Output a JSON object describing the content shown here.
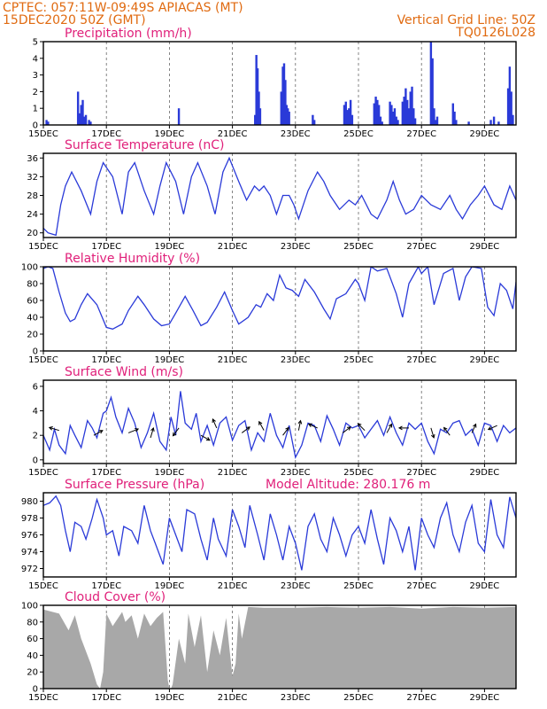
{
  "header": {
    "line1": "CPTEC:   057:11W-09:49S   APIACAS (MT)",
    "line2": "15DEC2020 50Z (GMT)",
    "right1": "Vertical Grid Line: 50Z",
    "right2": "TQ0126L028"
  },
  "colors": {
    "header": "#e06a10",
    "title": "#e0207a",
    "line": "#2a3ad8",
    "bar": "#2a3ad8",
    "cloud": "#a8a8a8"
  },
  "x_axis": {
    "range": [
      0,
      15
    ],
    "ticks": [
      {
        "x": 0,
        "label": "15DEC"
      },
      {
        "x": 2,
        "label": "17DEC"
      },
      {
        "x": 4,
        "label": "19DEC"
      },
      {
        "x": 6,
        "label": "21DEC"
      },
      {
        "x": 8,
        "label": "23DEC"
      },
      {
        "x": 10,
        "label": "25DEC"
      },
      {
        "x": 12,
        "label": "27DEC"
      },
      {
        "x": 14,
        "label": "29DEC"
      }
    ]
  },
  "chart_data": [
    {
      "type": "bar",
      "title": "Precipitation (mm/h)",
      "ylim": [
        0,
        5
      ],
      "yticks": [
        0,
        1,
        2,
        3,
        4,
        5
      ],
      "x": [
        0.1,
        0.15,
        1.1,
        1.15,
        1.2,
        1.25,
        1.3,
        1.35,
        1.45,
        1.5,
        4.3,
        6.72,
        6.76,
        6.8,
        6.84,
        6.88,
        7.55,
        7.6,
        7.64,
        7.68,
        7.72,
        7.76,
        7.8,
        8.55,
        8.6,
        9.55,
        9.6,
        9.65,
        9.7,
        9.75,
        9.8,
        10.5,
        10.55,
        10.6,
        10.65,
        10.7,
        10.75,
        11.0,
        11.05,
        11.1,
        11.15,
        11.2,
        11.25,
        11.4,
        11.45,
        11.5,
        11.55,
        11.6,
        11.65,
        11.7,
        11.75,
        11.8,
        12.3,
        12.35,
        12.4,
        12.45,
        12.5,
        13.0,
        13.05,
        13.1,
        13.5,
        14.2,
        14.3,
        14.45,
        14.75,
        14.8,
        14.85,
        14.9
      ],
      "values": [
        0.3,
        0.2,
        2.0,
        0.7,
        1.2,
        1.5,
        0.5,
        0.6,
        0.3,
        0.2,
        1.0,
        0.6,
        4.2,
        3.4,
        2.0,
        1.0,
        2.0,
        3.5,
        3.7,
        2.7,
        1.2,
        1.0,
        0.8,
        0.6,
        0.3,
        1.2,
        1.4,
        0.9,
        1.0,
        1.5,
        0.6,
        1.3,
        1.7,
        1.5,
        1.2,
        0.5,
        0.2,
        1.4,
        1.2,
        0.8,
        1.0,
        0.5,
        0.3,
        1.4,
        1.7,
        2.2,
        1.5,
        1.0,
        2.0,
        2.3,
        1.0,
        0.4,
        5.0,
        4.0,
        1.0,
        0.3,
        0.5,
        1.3,
        0.8,
        0.3,
        0.2,
        0.3,
        0.5,
        0.2,
        2.2,
        3.5,
        2.0,
        0.6
      ]
    },
    {
      "type": "line",
      "title": "Surface Temperature (nC)",
      "ylim": [
        19,
        37
      ],
      "yticks": [
        20,
        24,
        28,
        32,
        36
      ],
      "x": [
        0,
        0.15,
        0.4,
        0.55,
        0.7,
        0.9,
        1.2,
        1.5,
        1.7,
        1.9,
        2.2,
        2.5,
        2.7,
        2.9,
        3.2,
        3.5,
        3.7,
        3.9,
        4.2,
        4.45,
        4.7,
        4.9,
        5.2,
        5.45,
        5.7,
        5.9,
        6.2,
        6.45,
        6.7,
        6.85,
        7.0,
        7.2,
        7.4,
        7.6,
        7.8,
        7.95,
        8.1,
        8.4,
        8.7,
        8.9,
        9.1,
        9.4,
        9.7,
        9.9,
        10.1,
        10.4,
        10.6,
        10.9,
        11.1,
        11.3,
        11.5,
        11.75,
        12.0,
        12.3,
        12.6,
        12.9,
        13.1,
        13.3,
        13.55,
        13.8,
        14.0,
        14.3,
        14.55,
        14.8,
        15.0
      ],
      "values": [
        21,
        20,
        19.5,
        26,
        30,
        33,
        29,
        24,
        31,
        35,
        32,
        24,
        33,
        35,
        29,
        24,
        30,
        35,
        31,
        24,
        32,
        35,
        30,
        24,
        33,
        36,
        31,
        27,
        30,
        29,
        30,
        28,
        24,
        28,
        28,
        26,
        23,
        29,
        33,
        31,
        28,
        25,
        27,
        26,
        28,
        24,
        23,
        27,
        31,
        27,
        24,
        25,
        28,
        26,
        25,
        28,
        25,
        23,
        26,
        28,
        30,
        26,
        25,
        30,
        27
      ]
    },
    {
      "type": "line",
      "title": "Relative Humidity (%)",
      "ylim": [
        0,
        100
      ],
      "yticks": [
        0,
        20,
        40,
        60,
        80,
        100
      ],
      "x": [
        0,
        0.15,
        0.3,
        0.5,
        0.7,
        0.85,
        1.0,
        1.2,
        1.4,
        1.7,
        2.0,
        2.2,
        2.5,
        2.7,
        3.0,
        3.2,
        3.5,
        3.75,
        4.0,
        4.2,
        4.5,
        4.75,
        5.0,
        5.2,
        5.5,
        5.75,
        6.0,
        6.2,
        6.5,
        6.75,
        6.9,
        7.1,
        7.3,
        7.5,
        7.7,
        7.9,
        8.1,
        8.3,
        8.6,
        8.9,
        9.1,
        9.3,
        9.6,
        9.9,
        10.0,
        10.2,
        10.4,
        10.6,
        10.9,
        11.2,
        11.4,
        11.6,
        11.9,
        12.0,
        12.2,
        12.4,
        12.7,
        13.0,
        13.2,
        13.4,
        13.6,
        13.9,
        14.1,
        14.3,
        14.5,
        14.7,
        14.9,
        15.0
      ],
      "values": [
        98,
        100,
        98,
        70,
        45,
        35,
        38,
        55,
        68,
        55,
        28,
        26,
        32,
        48,
        65,
        55,
        38,
        30,
        32,
        45,
        65,
        48,
        30,
        34,
        52,
        70,
        48,
        32,
        40,
        55,
        52,
        68,
        60,
        90,
        75,
        72,
        65,
        85,
        70,
        50,
        38,
        62,
        68,
        85,
        80,
        60,
        100,
        95,
        98,
        68,
        40,
        80,
        100,
        92,
        100,
        55,
        92,
        98,
        60,
        88,
        100,
        98,
        52,
        42,
        80,
        72,
        50,
        82
      ]
    },
    {
      "type": "line",
      "title": "Surface Wind (m/s)",
      "ylim": [
        -0.3,
        6.5
      ],
      "yticks": [
        0,
        2,
        4,
        6
      ],
      "x": [
        0,
        0.2,
        0.35,
        0.5,
        0.7,
        0.85,
        1.0,
        1.2,
        1.4,
        1.55,
        1.7,
        1.9,
        2.0,
        2.15,
        2.3,
        2.5,
        2.7,
        2.9,
        3.1,
        3.3,
        3.5,
        3.7,
        3.9,
        4.05,
        4.2,
        4.35,
        4.5,
        4.7,
        4.85,
        5.0,
        5.2,
        5.4,
        5.6,
        5.8,
        6.0,
        6.2,
        6.4,
        6.6,
        6.8,
        7.0,
        7.2,
        7.4,
        7.6,
        7.8,
        8.0,
        8.2,
        8.4,
        8.6,
        8.8,
        9.0,
        9.2,
        9.4,
        9.6,
        9.8,
        10.0,
        10.2,
        10.4,
        10.6,
        10.8,
        11.0,
        11.2,
        11.4,
        11.6,
        11.8,
        12.0,
        12.2,
        12.4,
        12.6,
        12.8,
        13.0,
        13.2,
        13.4,
        13.6,
        13.8,
        14.0,
        14.2,
        14.4,
        14.6,
        14.8,
        15.0
      ],
      "values": [
        2.0,
        0.8,
        2.5,
        1.2,
        0.5,
        2.8,
        2.0,
        1.0,
        3.2,
        2.6,
        1.8,
        3.8,
        4.0,
        5.1,
        3.5,
        2.2,
        4.2,
        3.0,
        1.0,
        2.2,
        3.8,
        1.5,
        0.8,
        3.5,
        2.0,
        5.6,
        3.0,
        2.5,
        3.8,
        1.5,
        2.8,
        1.2,
        3.0,
        3.5,
        1.6,
        2.8,
        3.2,
        0.8,
        2.2,
        1.5,
        3.8,
        2.0,
        1.0,
        2.8,
        0.2,
        1.2,
        3.0,
        2.8,
        1.5,
        3.6,
        2.5,
        1.2,
        3.0,
        2.6,
        2.8,
        1.8,
        2.5,
        3.2,
        2.0,
        3.5,
        2.2,
        1.2,
        3.0,
        2.5,
        3.0,
        1.5,
        0.5,
        2.5,
        2.2,
        3.0,
        3.2,
        2.0,
        2.5,
        1.2,
        3.0,
        2.8,
        1.5,
        2.8,
        2.2,
        2.6
      ],
      "vectors": [
        {
          "x": 0.5,
          "y": 2.4,
          "dx": -1,
          "dy": 0.3
        },
        {
          "x": 1.6,
          "y": 2.0,
          "dx": 0.9,
          "dy": 0.5
        },
        {
          "x": 2.7,
          "y": 2.2,
          "dx": 1,
          "dy": 0.4
        },
        {
          "x": 3.4,
          "y": 1.8,
          "dx": 0.3,
          "dy": 1
        },
        {
          "x": 4.3,
          "y": 2.6,
          "dx": -0.6,
          "dy": -0.8
        },
        {
          "x": 5.0,
          "y": 2.0,
          "dx": 0.9,
          "dy": -0.5
        },
        {
          "x": 5.5,
          "y": 2.6,
          "dx": -0.4,
          "dy": 0.9
        },
        {
          "x": 6.3,
          "y": 2.2,
          "dx": 0.8,
          "dy": 0.6
        },
        {
          "x": 7.0,
          "y": 2.4,
          "dx": -0.5,
          "dy": 0.9
        },
        {
          "x": 7.6,
          "y": 2.0,
          "dx": 0.6,
          "dy": 0.8
        },
        {
          "x": 8.1,
          "y": 2.4,
          "dx": 0.2,
          "dy": 1
        },
        {
          "x": 8.7,
          "y": 2.6,
          "dx": -0.9,
          "dy": 0.4
        },
        {
          "x": 9.5,
          "y": 2.2,
          "dx": 0.8,
          "dy": 0.6
        },
        {
          "x": 10.2,
          "y": 2.4,
          "dx": -0.7,
          "dy": 0.7
        },
        {
          "x": 10.9,
          "y": 2.2,
          "dx": 0.5,
          "dy": 0.9
        },
        {
          "x": 11.6,
          "y": 2.6,
          "dx": -1,
          "dy": 0
        },
        {
          "x": 12.3,
          "y": 2.6,
          "dx": 0.3,
          "dy": -1
        },
        {
          "x": 12.9,
          "y": 2.0,
          "dx": -0.6,
          "dy": 0.8
        },
        {
          "x": 13.6,
          "y": 2.2,
          "dx": 0.4,
          "dy": 0.9
        },
        {
          "x": 14.4,
          "y": 2.8,
          "dx": -0.9,
          "dy": -0.4
        }
      ]
    },
    {
      "type": "line",
      "title": "Surface Pressure (hPa)",
      "annotation": "Model Altitude: 280.176 m",
      "ylim": [
        971,
        981
      ],
      "yticks": [
        972,
        974,
        976,
        978,
        980
      ],
      "x": [
        0,
        0.2,
        0.4,
        0.55,
        0.7,
        0.85,
        1.0,
        1.2,
        1.35,
        1.55,
        1.7,
        1.9,
        2.0,
        2.2,
        2.4,
        2.55,
        2.8,
        3.0,
        3.2,
        3.4,
        3.55,
        3.8,
        4.0,
        4.2,
        4.4,
        4.55,
        4.8,
        5.0,
        5.2,
        5.4,
        5.55,
        5.8,
        6.0,
        6.2,
        6.4,
        6.55,
        6.8,
        7.0,
        7.2,
        7.4,
        7.6,
        7.8,
        8.0,
        8.2,
        8.4,
        8.6,
        8.8,
        9.0,
        9.2,
        9.4,
        9.6,
        9.8,
        10.0,
        10.2,
        10.4,
        10.6,
        10.8,
        11.0,
        11.2,
        11.4,
        11.6,
        11.8,
        12.0,
        12.2,
        12.4,
        12.6,
        12.8,
        13.0,
        13.2,
        13.4,
        13.6,
        13.8,
        14.0,
        14.2,
        14.4,
        14.6,
        14.8,
        15.0
      ],
      "values": [
        979.5,
        979.8,
        980.6,
        979.5,
        976.5,
        974,
        977.5,
        977,
        975.5,
        978,
        980.2,
        978,
        976,
        976.5,
        973.5,
        977,
        976.5,
        975,
        979.5,
        976.5,
        975,
        972.5,
        978,
        976,
        974,
        979,
        978.5,
        975.5,
        973,
        978,
        975.5,
        973.5,
        979,
        977,
        974.5,
        979.5,
        976,
        973,
        978.5,
        976,
        973,
        977,
        975,
        971.8,
        977,
        978.5,
        975.5,
        974,
        978,
        976,
        973.5,
        976,
        977,
        975,
        979,
        975.5,
        972.5,
        978,
        976.5,
        974,
        977,
        971.8,
        978,
        976,
        974.5,
        978,
        979.8,
        976,
        974,
        977.5,
        979.5,
        975,
        974,
        980.2,
        976,
        974.5,
        980.5,
        978
      ]
    },
    {
      "type": "area",
      "title": "Cloud Cover (%)",
      "ylim": [
        0,
        100
      ],
      "yticks": [
        0,
        20,
        40,
        60,
        80,
        100
      ],
      "x": [
        0,
        0.5,
        0.8,
        1.0,
        1.2,
        1.5,
        1.7,
        1.8,
        1.9,
        2.0,
        2.2,
        2.5,
        2.6,
        2.8,
        3.0,
        3.2,
        3.4,
        3.6,
        3.8,
        3.95,
        4.0,
        4.05,
        4.1,
        4.3,
        4.5,
        4.6,
        4.8,
        5.0,
        5.2,
        5.4,
        5.6,
        5.8,
        6.0,
        6.1,
        6.2,
        6.3,
        6.5,
        7.0,
        8.0,
        9.0,
        10.0,
        11.0,
        12.0,
        13.0,
        14.0,
        15.0
      ],
      "values": [
        95,
        90,
        70,
        88,
        60,
        30,
        5,
        0,
        20,
        90,
        75,
        92,
        80,
        88,
        60,
        90,
        75,
        85,
        92,
        10,
        0,
        0,
        5,
        60,
        30,
        90,
        50,
        88,
        20,
        70,
        40,
        85,
        15,
        30,
        90,
        60,
        98,
        97,
        97,
        98,
        97,
        98,
        96,
        98,
        97,
        98
      ]
    }
  ]
}
